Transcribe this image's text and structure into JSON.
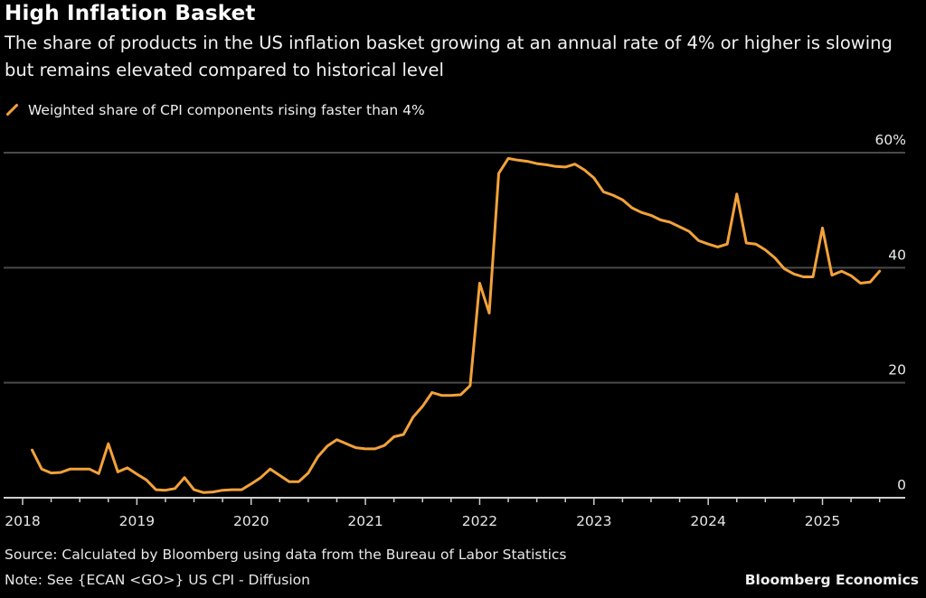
{
  "header": {
    "title": "High Inflation Basket",
    "subtitle": "The share of products in the US inflation basket growing at an annual rate of 4% or higher is slowing but remains elevated compared to historical level"
  },
  "legend": {
    "label": "Weighted share of CPI components rising faster than 4%",
    "color": "#F2A23A"
  },
  "footer": {
    "source": "Source: Calculated by Bloomberg using data from the Bureau of Labor Statistics",
    "note": "Note: See {ECAN <GO>} US CPI - Diffusion",
    "brand": "Bloomberg Economics"
  },
  "chart_data": {
    "type": "line",
    "title": "High Inflation Basket",
    "subtitle": "The share of products in the US inflation basket growing at an annual rate of 4% or higher is slowing but remains elevated compared to historical level",
    "xlabel": "",
    "ylabel": "",
    "x_start": "2018-02",
    "x_frequency": "monthly",
    "xlim": [
      "2018-01",
      "2025-10"
    ],
    "ylim": [
      0,
      60
    ],
    "y_ticks": [
      0,
      20,
      40,
      60
    ],
    "y_tick_labels": [
      "0",
      "20",
      "40",
      "60%"
    ],
    "y_axis_side": "right",
    "x_ticks": [
      "2018",
      "2019",
      "2020",
      "2021",
      "2022",
      "2023",
      "2024",
      "2025"
    ],
    "grid": true,
    "legend_position": "top-left",
    "series": [
      {
        "name": "Weighted share of CPI components rising faster than 4%",
        "color": "#F2A23A",
        "values": [
          8.3,
          5.0,
          4.3,
          4.4,
          5.0,
          5.0,
          5.0,
          4.2,
          9.4,
          4.5,
          5.2,
          4.1,
          3.1,
          1.4,
          1.3,
          1.6,
          3.5,
          1.4,
          0.9,
          1.0,
          1.3,
          1.4,
          1.4,
          2.4,
          3.5,
          5.0,
          3.9,
          2.8,
          2.8,
          4.3,
          7.1,
          9.0,
          10.1,
          9.4,
          8.7,
          8.5,
          8.5,
          9.1,
          10.6,
          11.0,
          14.0,
          15.9,
          18.3,
          17.8,
          17.8,
          17.9,
          19.5,
          37.3,
          32.1,
          56.4,
          59.0,
          58.7,
          58.5,
          58.1,
          57.9,
          57.6,
          57.5,
          58.0,
          57.0,
          55.6,
          53.2,
          52.6,
          51.8,
          50.4,
          49.6,
          49.1,
          48.3,
          47.9,
          47.1,
          46.3,
          44.7,
          44.1,
          43.6,
          44.1,
          52.8,
          44.3,
          44.1,
          43.1,
          41.7,
          39.8,
          38.9,
          38.4,
          38.4,
          46.9,
          38.7,
          39.4,
          38.6,
          37.3,
          37.5,
          39.4
        ]
      }
    ]
  }
}
